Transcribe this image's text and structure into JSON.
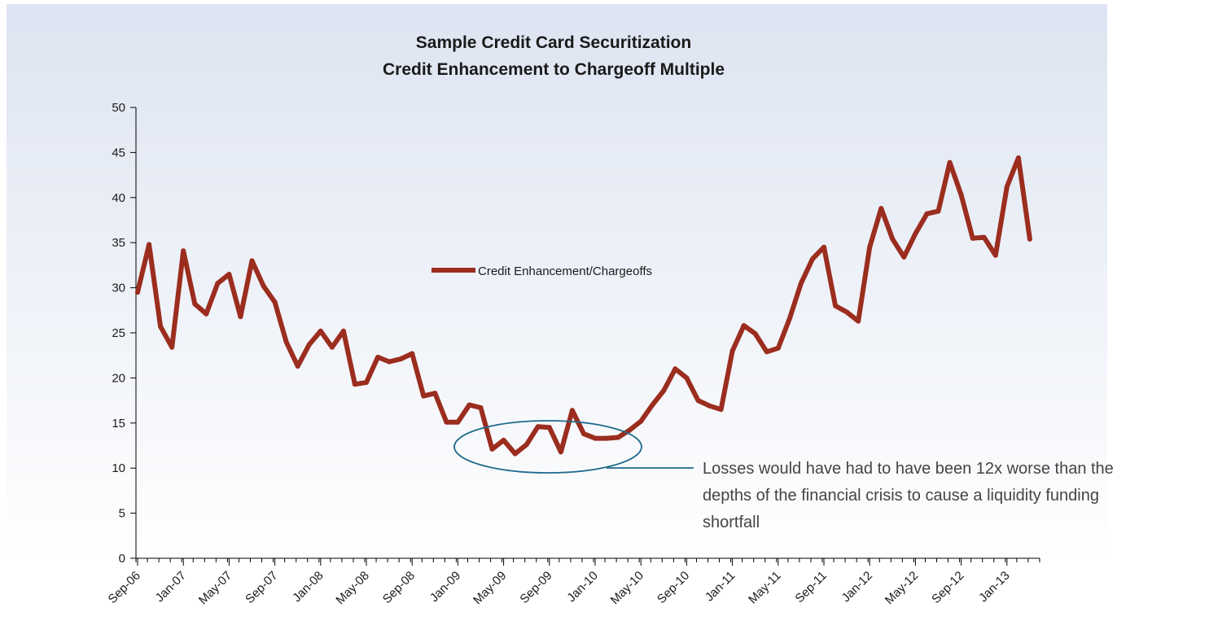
{
  "chart_data": {
    "type": "line",
    "title": "Sample Credit Card Securitization",
    "subtitle": "Credit Enhancement to Chargeoff Multiple",
    "xlabel": "",
    "ylabel": "",
    "ylim": [
      0,
      50
    ],
    "yticks": [
      0,
      5,
      10,
      15,
      20,
      25,
      30,
      35,
      40,
      45,
      50
    ],
    "x_tick_labels": [
      "Sep-06",
      "Jan-07",
      "May-07",
      "Sep-07",
      "Jan-08",
      "May-08",
      "Sep-08",
      "Jan-09",
      "May-09",
      "Sep-09",
      "Jan-10",
      "May-10",
      "Sep-10",
      "Jan-11",
      "May-11",
      "Sep-11",
      "Jan-12",
      "May-12",
      "Sep-12",
      "Jan-13"
    ],
    "legend": "center",
    "grid": false,
    "x": [
      "Sep-06",
      "Oct-06",
      "Nov-06",
      "Dec-06",
      "Jan-07",
      "Feb-07",
      "Mar-07",
      "Apr-07",
      "May-07",
      "Jun-07",
      "Jul-07",
      "Aug-07",
      "Sep-07",
      "Oct-07",
      "Nov-07",
      "Dec-07",
      "Jan-08",
      "Feb-08",
      "Mar-08",
      "Apr-08",
      "May-08",
      "Jun-08",
      "Jul-08",
      "Aug-08",
      "Sep-08",
      "Oct-08",
      "Nov-08",
      "Dec-08",
      "Jan-09",
      "Feb-09",
      "Mar-09",
      "Apr-09",
      "May-09",
      "Jun-09",
      "Jul-09",
      "Aug-09",
      "Sep-09",
      "Oct-09",
      "Nov-09",
      "Dec-09",
      "Jan-10",
      "Feb-10",
      "Mar-10",
      "Apr-10",
      "May-10",
      "Jun-10",
      "Jul-10",
      "Aug-10",
      "Sep-10",
      "Oct-10",
      "Nov-10",
      "Dec-10",
      "Jan-11",
      "Feb-11",
      "Mar-11",
      "Apr-11",
      "May-11",
      "Jun-11",
      "Jul-11",
      "Aug-11",
      "Sep-11",
      "Oct-11",
      "Nov-11",
      "Dec-11",
      "Jan-12",
      "Feb-12",
      "Mar-12",
      "Apr-12",
      "May-12",
      "Jun-12",
      "Jul-12",
      "Aug-12",
      "Sep-12",
      "Oct-12",
      "Nov-12",
      "Dec-12",
      "Jan-13",
      "Feb-13",
      "Mar-13"
    ],
    "series": [
      {
        "name": "Credit Enhancement/Chargeoffs",
        "color": "#9b2d1f",
        "values": [
          29.5,
          34.8,
          25.7,
          23.4,
          34.1,
          28.2,
          27.1,
          30.5,
          31.5,
          26.8,
          33.0,
          30.2,
          28.4,
          24.0,
          21.3,
          23.7,
          25.2,
          23.4,
          25.2,
          19.3,
          19.5,
          22.3,
          21.8,
          22.1,
          22.7,
          18.0,
          18.3,
          15.1,
          15.1,
          17.0,
          16.7,
          12.1,
          13.1,
          11.6,
          12.6,
          14.6,
          14.5,
          11.8,
          16.4,
          13.8,
          13.3,
          13.3,
          13.4,
          14.2,
          15.2,
          17.0,
          18.6,
          21.0,
          20.0,
          17.5,
          16.9,
          16.5,
          23.0,
          25.8,
          24.9,
          22.9,
          23.3,
          26.6,
          30.5,
          33.2,
          34.5,
          28.0,
          27.3,
          26.3,
          34.5,
          38.8,
          35.4,
          33.4,
          36.0,
          38.2,
          38.5,
          43.9,
          40.3,
          35.5,
          35.6,
          33.6,
          41.2,
          44.4,
          35.4
        ]
      }
    ],
    "annotations": [
      {
        "text": "Losses would have had to have been 12x worse than the depths of the financial crisis to cause a liquidity funding shortfall",
        "lines": [
          "Losses would have had to have been 12x worse than the",
          "depths of the financial crisis to cause a liquidity funding",
          "shortfall"
        ],
        "circle_color": "#1f6a8a",
        "circled_period_start": "Feb-09",
        "circled_period_end": "May-10"
      }
    ]
  }
}
